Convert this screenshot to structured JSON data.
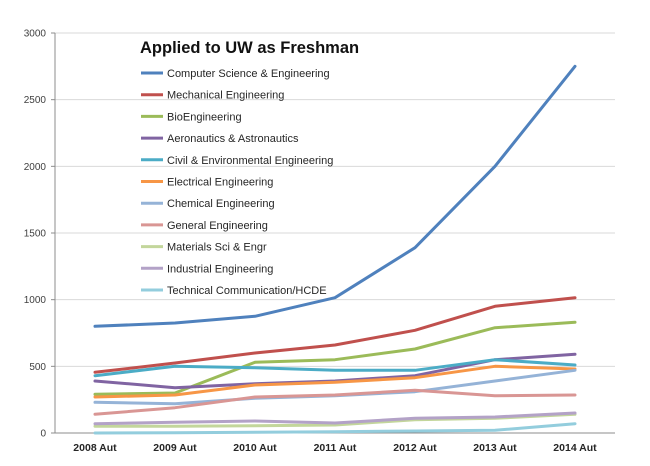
{
  "chart_data": {
    "type": "line",
    "title": "Applied to UW as Freshman",
    "xlabel": "",
    "ylabel": "",
    "categories": [
      "2008 Aut",
      "2009 Aut",
      "2010 Aut",
      "2011 Aut",
      "2012 Aut",
      "2013 Aut",
      "2014 Aut"
    ],
    "ylim": [
      0,
      3000
    ],
    "yticks": [
      0,
      500,
      1000,
      1500,
      2000,
      2500,
      3000
    ],
    "grid": true,
    "legend": "top-left",
    "series": [
      {
        "name": "Computer Science & Engineering",
        "color": "#4F81BD",
        "values": [
          800,
          825,
          875,
          1015,
          1390,
          2000,
          2750
        ]
      },
      {
        "name": "Mechanical Engineering",
        "color": "#C0504D",
        "values": [
          455,
          525,
          600,
          660,
          770,
          950,
          1015
        ]
      },
      {
        "name": "BioEngineering",
        "color": "#9BBB59",
        "values": [
          290,
          300,
          530,
          550,
          630,
          790,
          830
        ]
      },
      {
        "name": "Aeronautics & Astronautics",
        "color": "#8064A2",
        "values": [
          390,
          340,
          370,
          390,
          430,
          550,
          590
        ]
      },
      {
        "name": "Civil & Environmental Engineering",
        "color": "#4BACC6",
        "values": [
          430,
          500,
          490,
          470,
          470,
          550,
          510
        ]
      },
      {
        "name": "Electrical Engineering",
        "color": "#F79646",
        "values": [
          270,
          285,
          360,
          380,
          415,
          500,
          480
        ]
      },
      {
        "name": "Chemical Engineering",
        "color": "#95B3D7",
        "values": [
          230,
          220,
          260,
          280,
          310,
          390,
          470
        ]
      },
      {
        "name": "General Engineering",
        "color": "#D99694",
        "values": [
          140,
          190,
          270,
          285,
          320,
          280,
          285
        ]
      },
      {
        "name": "Materials Sci & Engr",
        "color": "#C3D69B",
        "values": [
          50,
          50,
          55,
          60,
          100,
          110,
          140
        ]
      },
      {
        "name": "Industrial Engineering",
        "color": "#B3A2C7",
        "values": [
          70,
          80,
          90,
          75,
          110,
          120,
          150
        ]
      },
      {
        "name": "Technical Communication/HCDE",
        "color": "#93CDDD",
        "values": [
          0,
          2,
          5,
          10,
          15,
          20,
          70
        ]
      }
    ]
  }
}
